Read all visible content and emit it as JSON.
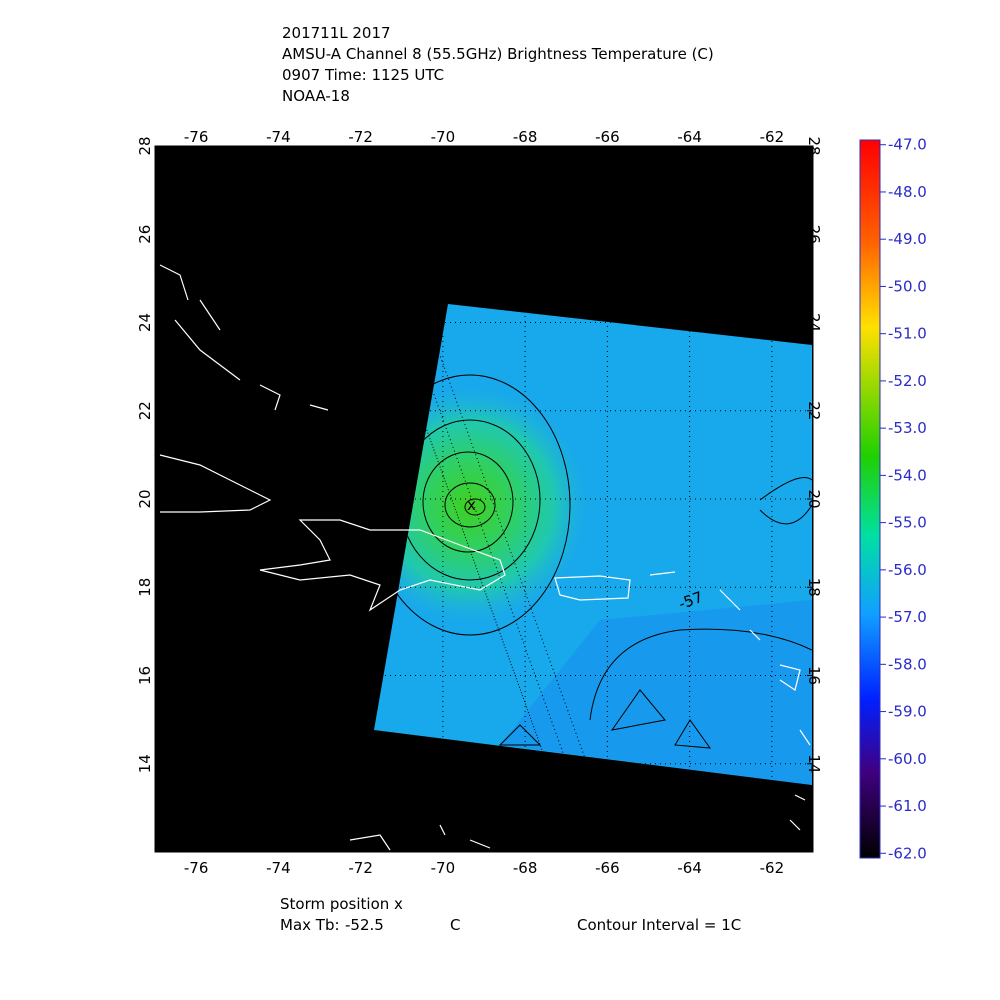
{
  "header": {
    "lines": [
      "201711L 2017",
      "AMSU-A Channel 8 (55.5GHz) Brightness Temperature (C)",
      "0907 Time: 1125 UTC",
      "NOAA-18"
    ]
  },
  "map": {
    "lonlim": [
      -77,
      -61
    ],
    "latlim": [
      12,
      28
    ],
    "lonticks": [
      -76,
      -74,
      -72,
      -70,
      -68,
      -66,
      -64,
      -62
    ],
    "latticks": [
      14,
      16,
      18,
      20,
      22,
      24,
      26,
      28
    ],
    "contour_label": "-57"
  },
  "colorbar": {
    "lim": [
      -62.1,
      -46.9
    ],
    "ticks": [
      {
        "value": -47,
        "label": "-47.0"
      },
      {
        "value": -48,
        "label": "-48.0"
      },
      {
        "value": -49,
        "label": "-49.0"
      },
      {
        "value": -50,
        "label": "-50.0"
      },
      {
        "value": -51,
        "label": "-51.0"
      },
      {
        "value": -52,
        "label": "-52.0"
      },
      {
        "value": -53,
        "label": "-53.0"
      },
      {
        "value": -54,
        "label": "-54.0"
      },
      {
        "value": -55,
        "label": "-55.0"
      },
      {
        "value": -56,
        "label": "-56.0"
      },
      {
        "value": -57,
        "label": "-57.0"
      },
      {
        "value": -58,
        "label": "-58.0"
      },
      {
        "value": -59,
        "label": "-59.0"
      },
      {
        "value": -60,
        "label": "-60.0"
      },
      {
        "value": -61,
        "label": "-61.0"
      },
      {
        "value": -62,
        "label": "-62.0"
      }
    ]
  },
  "footer": {
    "storm": "Storm position x",
    "max_label": "Max Tb:",
    "max_value": "-52.5",
    "max_unit": "C",
    "contour": "Contour Interval = 1C"
  }
}
